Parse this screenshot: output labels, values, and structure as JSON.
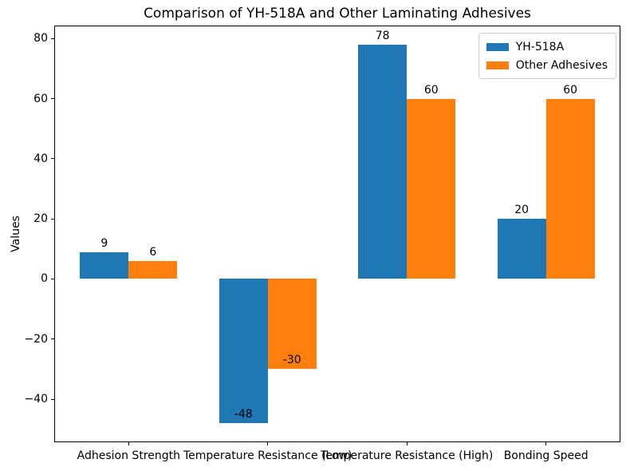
{
  "chart_data": {
    "type": "bar",
    "title": "Comparison of YH-518A and Other Laminating Adhesives",
    "xlabel": "",
    "ylabel": "Values",
    "categories": [
      "Adhesion Strength",
      "Temperature Resistance (Low)",
      "Temperature Resistance (High)",
      "Bonding Speed"
    ],
    "series": [
      {
        "name": "YH-518A",
        "color": "#1f77b4",
        "values": [
          9,
          -48,
          78,
          20
        ]
      },
      {
        "name": "Other Adhesives",
        "color": "#ff7f0e",
        "values": [
          6,
          -30,
          60,
          60
        ]
      }
    ],
    "bar_value_labels": {
      "YH-518A": [
        "9",
        "-48",
        "78",
        "20"
      ],
      "Other Adhesives": [
        "6",
        "-30",
        "60",
        "60"
      ]
    },
    "yticks": [
      {
        "value": 80,
        "label": "80"
      },
      {
        "value": 60,
        "label": "60"
      },
      {
        "value": 40,
        "label": "40"
      },
      {
        "value": 20,
        "label": "20"
      },
      {
        "value": 0,
        "label": "0"
      },
      {
        "value": -20,
        "label": "−20"
      },
      {
        "value": -40,
        "label": "−40"
      }
    ],
    "ylim": [
      -54.3,
      84.3
    ],
    "grid": false,
    "legend_position": "upper right",
    "bar_group_width": 0.7
  }
}
